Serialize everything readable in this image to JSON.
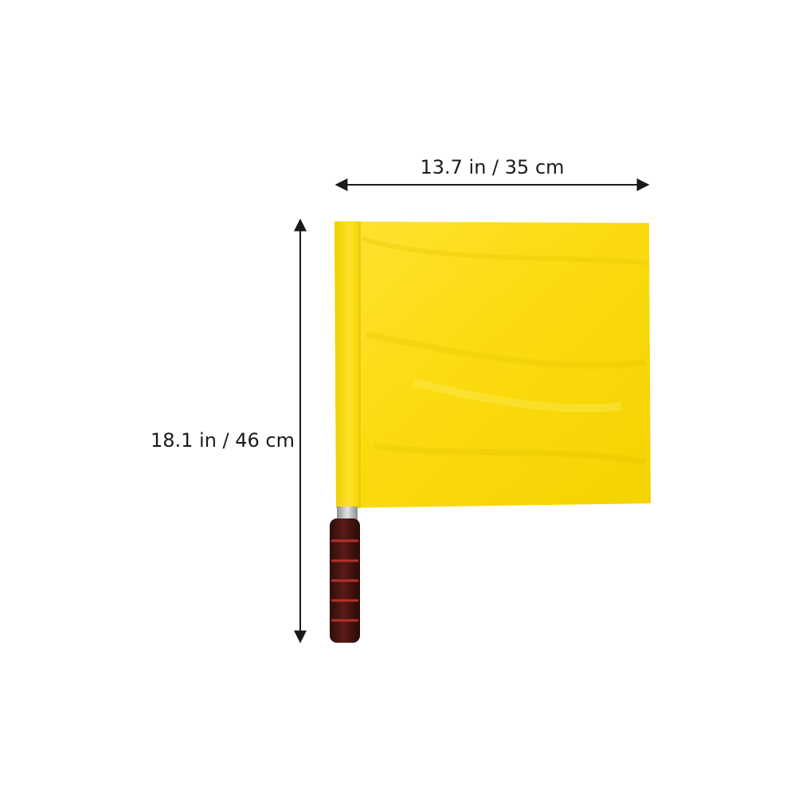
{
  "product": {
    "name": "yellow referee flag",
    "flag_color": "#F5D800",
    "handle_color": "#4A1512"
  },
  "dimensions": {
    "width_label": "13.7 in / 35 cm",
    "height_label": "18.1 in / 46 cm"
  },
  "colors": {
    "arrow": "#1a1a1a",
    "flag_light": "#FFE74A",
    "flag_dark": "#E9C800",
    "pole": "#B8B8B8"
  }
}
